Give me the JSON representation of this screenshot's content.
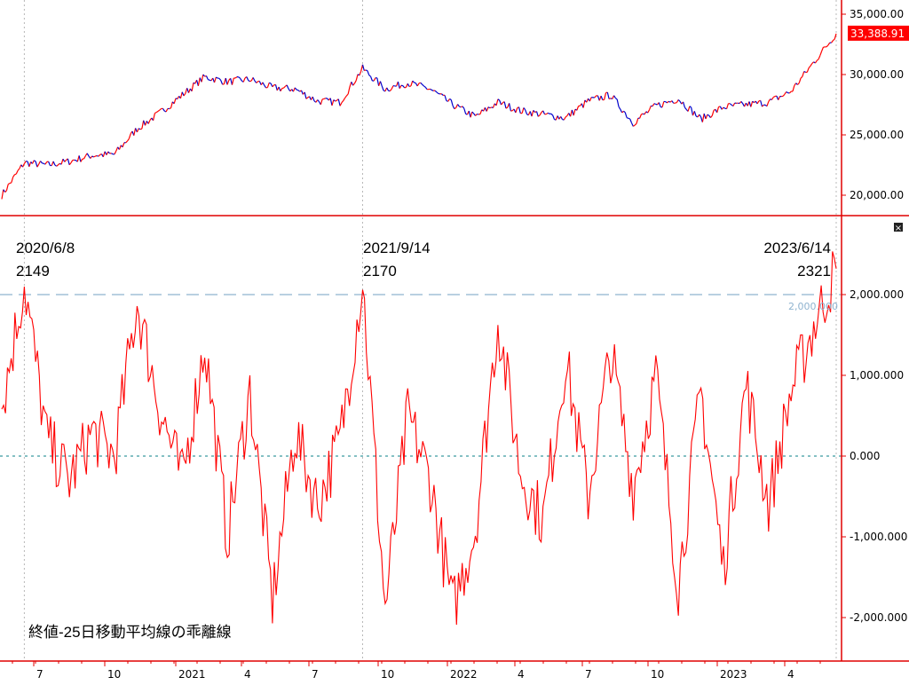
{
  "price_panel": {
    "last_price_label": "33,388.91",
    "y_ticks": [
      {
        "value": 20000,
        "label": "20,000.00"
      },
      {
        "value": 25000,
        "label": "25,000.00"
      },
      {
        "value": 30000,
        "label": "30,000.00"
      },
      {
        "value": 35000,
        "label": "35,000.00"
      }
    ]
  },
  "deviation_panel": {
    "title": "終値-25日移動平均線の乖離線",
    "reference_line_label": "2,000.000",
    "y_ticks": [
      {
        "value": -2000,
        "label": "-2,000.000"
      },
      {
        "value": -1000,
        "label": "-1,000.000"
      },
      {
        "value": 0,
        "label": "0.000"
      },
      {
        "value": 1000,
        "label": "1,000.000"
      },
      {
        "value": 2000,
        "label": "2,000.000"
      }
    ],
    "annotations": [
      {
        "date": "2020/6/8",
        "value": "2149"
      },
      {
        "date": "2021/9/14",
        "value": "2170"
      },
      {
        "date": "2023/6/14",
        "value": "2321"
      }
    ]
  },
  "x_axis": {
    "ticks": [
      "7",
      "10",
      "2021",
      "4",
      "7",
      "10",
      "2022",
      "4",
      "7",
      "10",
      "2023",
      "4"
    ]
  },
  "colors": {
    "price_up": "#ff0000",
    "price_down": "#0000cc",
    "deviation_line": "#ff0000",
    "reference_line": "#8fb3cf",
    "zero_line": "#3a9aa0",
    "axis": "#e00000",
    "last_price_bg": "#ff0000"
  },
  "chart_data": [
    {
      "type": "line",
      "title": "",
      "xlabel": "",
      "ylabel": "",
      "ylim": [
        18500,
        36000
      ],
      "x": [
        "2020-05",
        "2020-06",
        "2020-07",
        "2020-08",
        "2020-09",
        "2020-10",
        "2020-11",
        "2020-12",
        "2021-01",
        "2021-02",
        "2021-03",
        "2021-04",
        "2021-05",
        "2021-06",
        "2021-07",
        "2021-08",
        "2021-09",
        "2021-10",
        "2021-11",
        "2021-12",
        "2022-01",
        "2022-02",
        "2022-03",
        "2022-04",
        "2022-05",
        "2022-06",
        "2022-07",
        "2022-08",
        "2022-09",
        "2022-10",
        "2022-11",
        "2022-12",
        "2023-01",
        "2023-02",
        "2023-03",
        "2023-04",
        "2023-05",
        "2023-06"
      ],
      "series": [
        {
          "values": [
            20000,
            22700,
            22500,
            22800,
            23300,
            23400,
            25500,
            26800,
            28300,
            29800,
            29400,
            29600,
            28900,
            28800,
            27800,
            27700,
            30500,
            28800,
            29300,
            28800,
            27500,
            26500,
            27700,
            27000,
            26700,
            26400,
            27800,
            28300,
            26000,
            27400,
            28000,
            26300,
            27300,
            27500,
            27700,
            28600,
            31000,
            33389
          ]
        }
      ]
    },
    {
      "type": "line",
      "title": "終値-25日移動平均線の乖離線",
      "xlabel": "",
      "ylabel": "",
      "ylim": [
        -2500,
        2850
      ],
      "x": [
        "2020-05",
        "2020-06",
        "2020-07",
        "2020-08",
        "2020-09",
        "2020-10",
        "2020-11",
        "2020-12",
        "2021-01",
        "2021-02",
        "2021-03",
        "2021-04",
        "2021-05",
        "2021-06",
        "2021-07",
        "2021-08",
        "2021-09",
        "2021-10",
        "2021-11",
        "2021-12",
        "2022-01",
        "2022-02",
        "2022-03",
        "2022-04",
        "2022-05",
        "2022-06",
        "2022-07",
        "2022-08",
        "2022-09",
        "2022-10",
        "2022-11",
        "2022-12",
        "2023-01",
        "2023-02",
        "2023-03",
        "2023-04",
        "2023-05",
        "2023-06"
      ],
      "series": [
        {
          "values": [
            600,
            2149,
            200,
            -300,
            300,
            0,
            1900,
            600,
            -300,
            1400,
            -1000,
            800,
            -1800,
            300,
            -600,
            200,
            2170,
            -1900,
            500,
            -300,
            -1900,
            -900,
            1700,
            -200,
            -800,
            1200,
            -500,
            1300,
            -400,
            1000,
            -1600,
            800,
            -1400,
            900,
            -600,
            800,
            1600,
            2321
          ]
        }
      ]
    }
  ]
}
